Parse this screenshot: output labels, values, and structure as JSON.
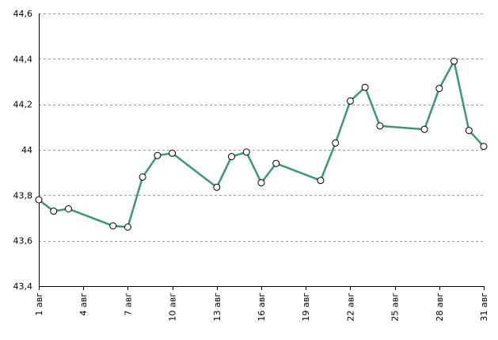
{
  "chart_data": {
    "type": "line",
    "title": "",
    "xlabel": "",
    "ylabel": "",
    "x_range": [
      1,
      31
    ],
    "ylim": [
      43.4,
      44.6
    ],
    "y_ticks": [
      {
        "value": 43.4,
        "label": "43,4"
      },
      {
        "value": 43.6,
        "label": "43,6"
      },
      {
        "value": 43.8,
        "label": "43,8"
      },
      {
        "value": 44.0,
        "label": "44"
      },
      {
        "value": 44.2,
        "label": "44,2"
      },
      {
        "value": 44.4,
        "label": "44,4"
      },
      {
        "value": 44.6,
        "label": "44,6"
      }
    ],
    "x_ticks": [
      {
        "value": 1,
        "label": "1 авг"
      },
      {
        "value": 4,
        "label": "4 авг"
      },
      {
        "value": 7,
        "label": "7 авг"
      },
      {
        "value": 10,
        "label": "10 авг"
      },
      {
        "value": 13,
        "label": "13 авг"
      },
      {
        "value": 16,
        "label": "16 авг"
      },
      {
        "value": 19,
        "label": "19 авг"
      },
      {
        "value": 22,
        "label": "22 авг"
      },
      {
        "value": 25,
        "label": "25 авг"
      },
      {
        "value": 28,
        "label": "28 авг"
      },
      {
        "value": 31,
        "label": "31 авг"
      }
    ],
    "grid": {
      "horizontal": true,
      "vertical": false,
      "style": "dashed"
    },
    "legend": "none",
    "series": [
      {
        "color": "#3a9a6a",
        "x": [
          1,
          2,
          3,
          6,
          7,
          8,
          9,
          10,
          13,
          14,
          15,
          16,
          17,
          20,
          21,
          22,
          23,
          24,
          27,
          28,
          29,
          30,
          31
        ],
        "y": [
          43.78,
          43.73,
          43.74,
          43.665,
          43.66,
          43.88,
          43.975,
          43.985,
          43.835,
          43.97,
          43.99,
          43.855,
          43.94,
          43.865,
          44.03,
          44.215,
          44.275,
          44.105,
          44.09,
          44.27,
          44.39,
          44.085,
          44.015
        ]
      }
    ]
  }
}
